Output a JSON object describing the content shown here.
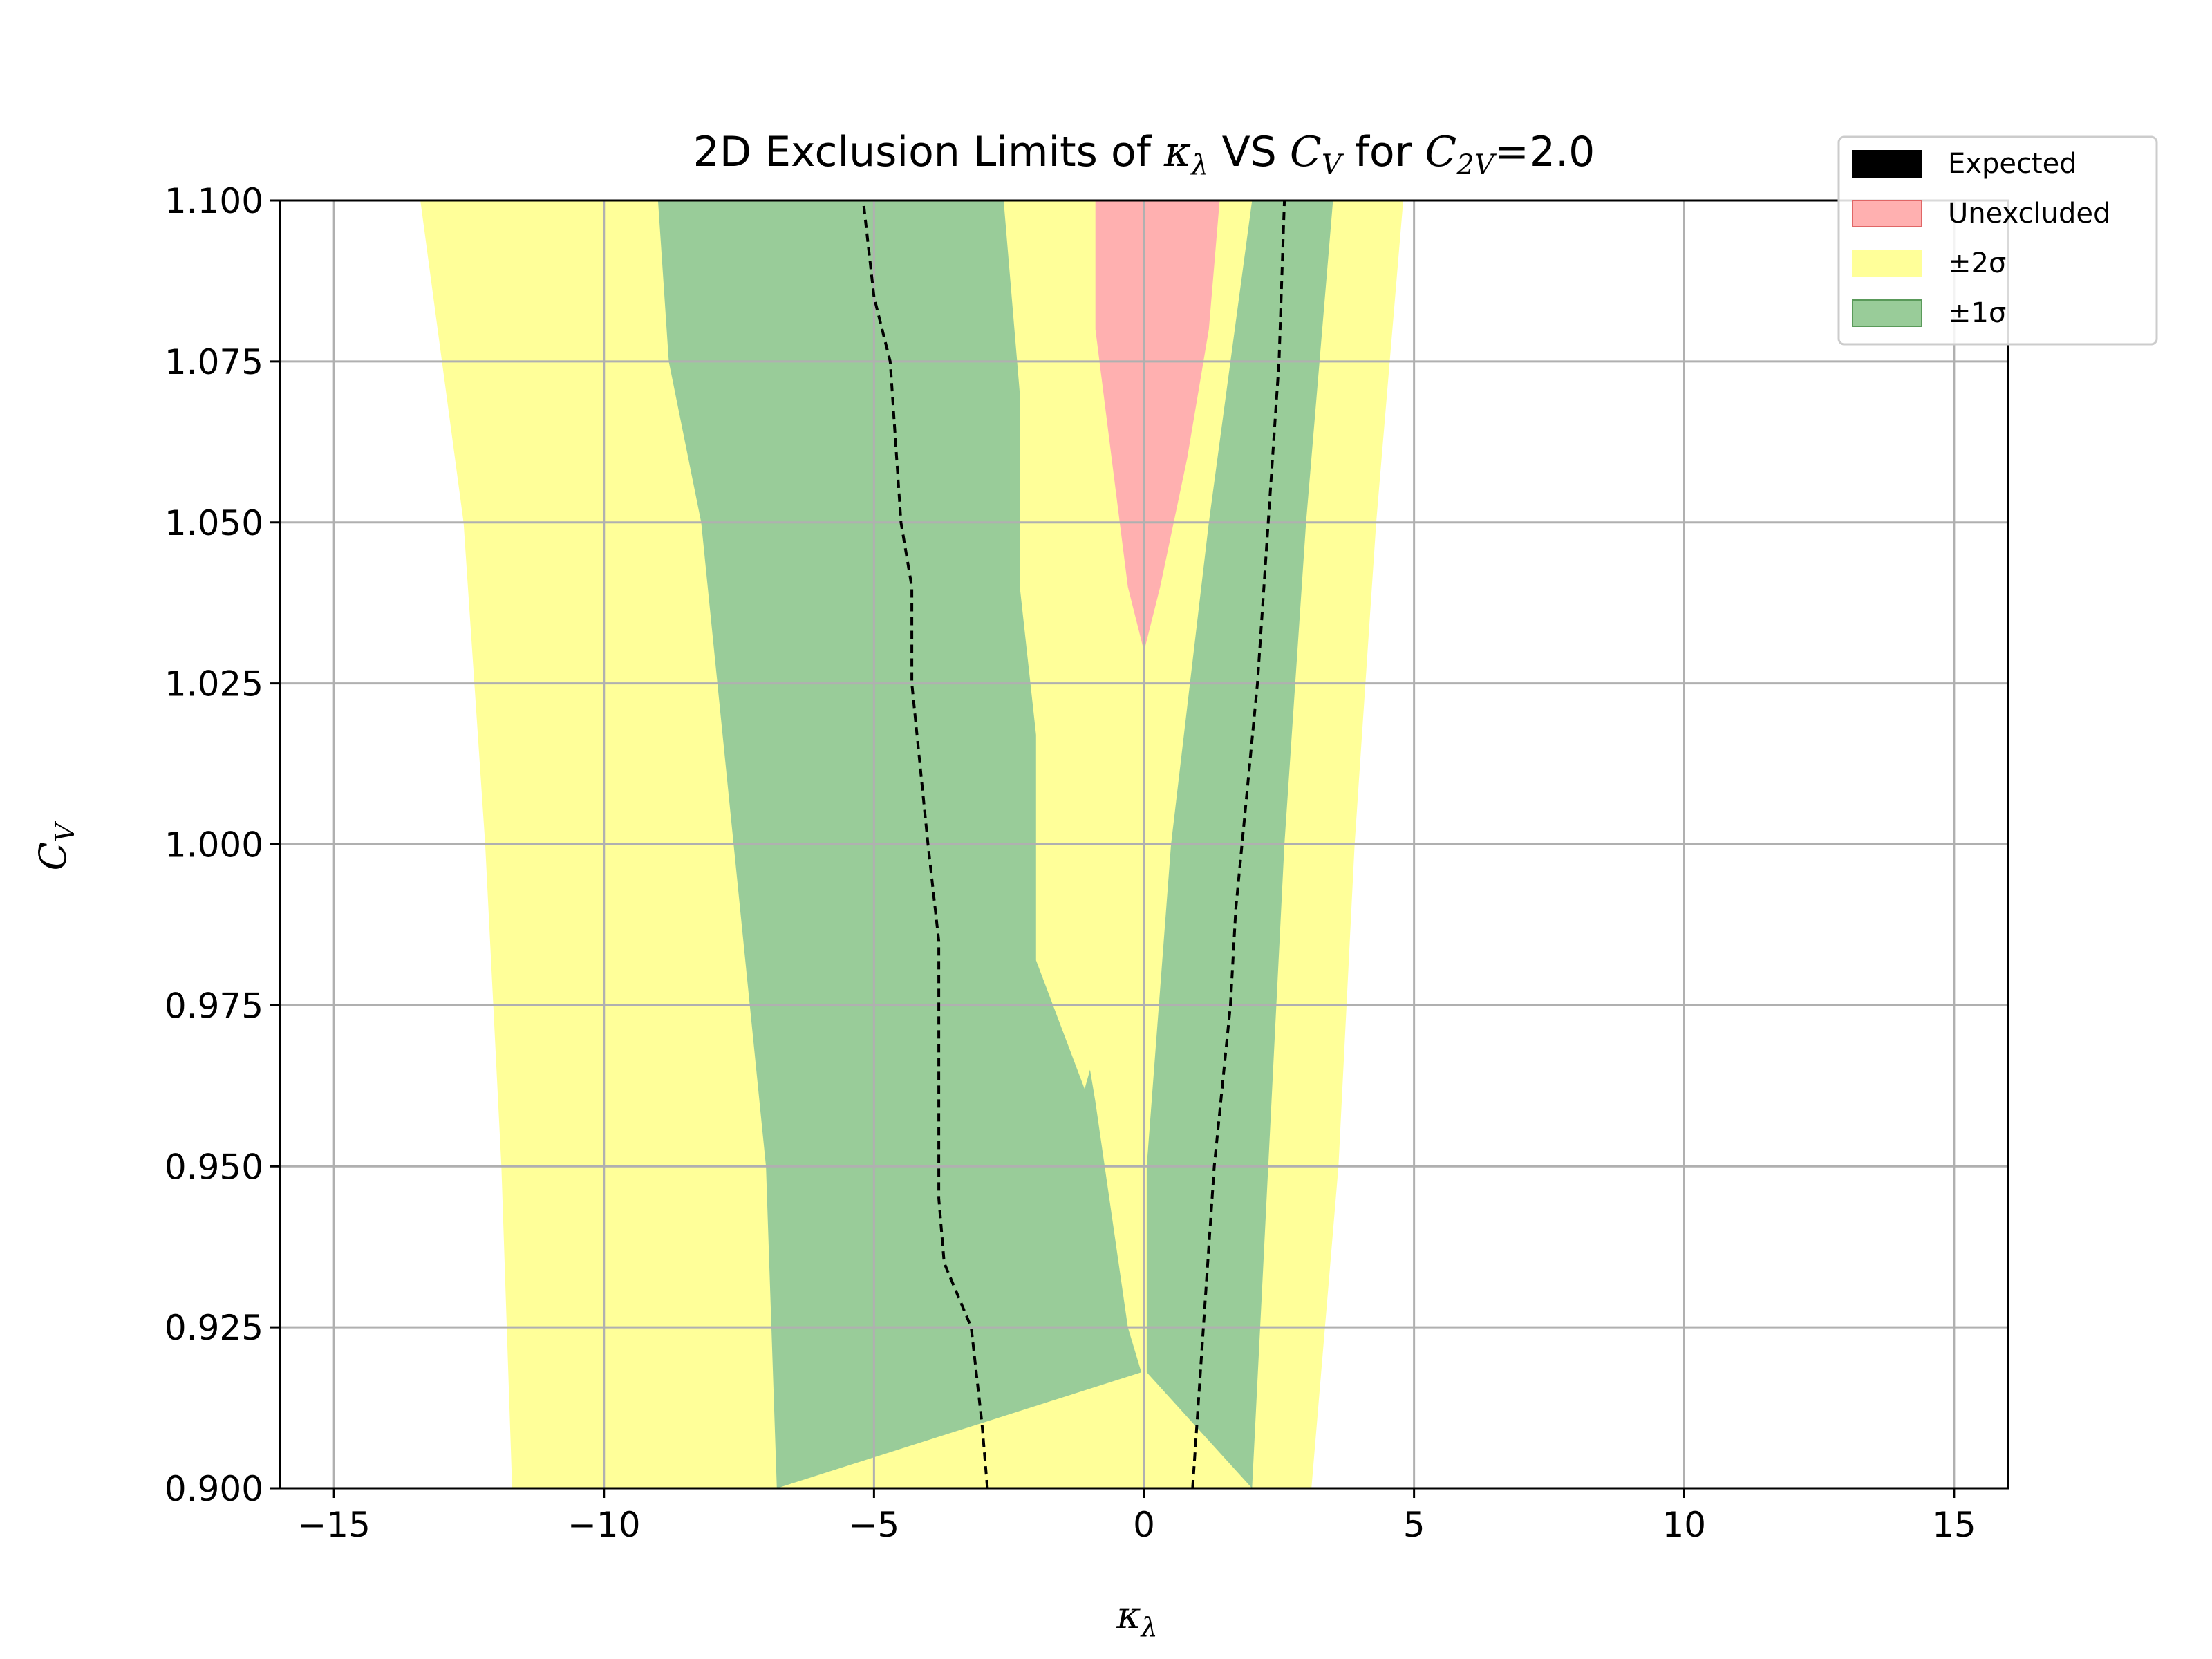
{
  "chart_data": {
    "type": "area",
    "title": {
      "prefix": "2D Exclusion Limits of ",
      "var1": "κ",
      "var1_sub": "λ",
      "middle": " VS ",
      "var2": "C",
      "var2_sub": "V",
      "middle2": " for ",
      "var3": "C",
      "var3_sub": "2V",
      "suffix": "=2.0"
    },
    "xlabel": {
      "symbol": "κ",
      "sub": "λ"
    },
    "ylabel": {
      "symbol": "C",
      "sub": "V"
    },
    "xlim": [
      -16,
      16
    ],
    "ylim": [
      0.9,
      1.1
    ],
    "xticks": [
      -15,
      -10,
      -5,
      0,
      5,
      10,
      15
    ],
    "xtick_labels": [
      "−15",
      "−10",
      "−5",
      "0",
      "5",
      "10",
      "15"
    ],
    "yticks": [
      0.9,
      0.925,
      0.95,
      0.975,
      1.0,
      1.025,
      1.05,
      1.075,
      1.1
    ],
    "ytick_labels": [
      "0.900",
      "0.925",
      "0.950",
      "0.975",
      "1.000",
      "1.025",
      "1.050",
      "1.075",
      "1.100"
    ],
    "grid": true,
    "legend_position": "top-right",
    "legend": [
      {
        "label": "Expected",
        "color": "#000000"
      },
      {
        "label": "Unexcluded",
        "color": "#ffb0b0"
      },
      {
        "label": "±2σ",
        "color": "#ffff99"
      },
      {
        "label": "±1σ",
        "color": "#99cc99"
      }
    ],
    "colors": {
      "expected": "#000000",
      "unexcluded": "#ffb0b0",
      "sigma2": "#ffff99",
      "sigma1": "#99cc99",
      "grid": "#b0b0b0"
    },
    "sigma2_band": {
      "left_boundary": [
        [
          -11.7,
          0.9
        ],
        [
          -11.9,
          0.95
        ],
        [
          -12.2,
          1.0
        ],
        [
          -12.6,
          1.05
        ],
        [
          -13.4,
          1.1
        ]
      ],
      "right_boundary": [
        [
          3.1,
          0.9
        ],
        [
          3.6,
          0.95
        ],
        [
          3.9,
          1.0
        ],
        [
          4.3,
          1.05
        ],
        [
          4.8,
          1.1
        ]
      ]
    },
    "sigma1_band_left": {
      "left_boundary": [
        [
          -6.8,
          0.9
        ],
        [
          -7.0,
          0.95
        ],
        [
          -7.6,
          1.0
        ],
        [
          -8.2,
          1.05
        ],
        [
          -8.8,
          1.075
        ],
        [
          -9.0,
          1.1
        ]
      ],
      "right_boundary": [
        [
          -0.05,
          0.918
        ],
        [
          -0.3,
          0.925
        ],
        [
          -0.9,
          0.96
        ],
        [
          -1.0,
          0.965
        ],
        [
          -1.1,
          0.962
        ],
        [
          -2.0,
          0.982
        ],
        [
          -2.0,
          1.0
        ],
        [
          -2.0,
          1.017
        ],
        [
          -2.3,
          1.04
        ],
        [
          -2.3,
          1.07
        ],
        [
          -2.6,
          1.1
        ]
      ]
    },
    "sigma1_band_right": {
      "left_boundary": [
        [
          0.05,
          0.918
        ],
        [
          0.05,
          0.95
        ],
        [
          0.5,
          1.0
        ],
        [
          1.2,
          1.05
        ],
        [
          2.0,
          1.1
        ]
      ],
      "right_boundary": [
        [
          2.0,
          0.9
        ],
        [
          2.3,
          0.95
        ],
        [
          2.6,
          1.0
        ],
        [
          3.0,
          1.05
        ],
        [
          3.5,
          1.1
        ]
      ]
    },
    "unexcluded_region": [
      [
        0.0,
        1.03
      ],
      [
        -0.3,
        1.04
      ],
      [
        -0.6,
        1.06
      ],
      [
        -0.9,
        1.08
      ],
      [
        -0.9,
        1.1
      ],
      [
        1.4,
        1.1
      ],
      [
        1.2,
        1.08
      ],
      [
        0.8,
        1.06
      ],
      [
        0.3,
        1.04
      ]
    ],
    "expected_left": [
      [
        -2.9,
        0.9
      ],
      [
        -3.0,
        0.91
      ],
      [
        -3.2,
        0.925
      ],
      [
        -3.7,
        0.935
      ],
      [
        -3.8,
        0.945
      ],
      [
        -3.8,
        0.985
      ],
      [
        -4.0,
        1.0
      ],
      [
        -4.3,
        1.025
      ],
      [
        -4.3,
        1.04
      ],
      [
        -4.5,
        1.05
      ],
      [
        -4.7,
        1.075
      ],
      [
        -5.0,
        1.085
      ],
      [
        -5.2,
        1.1
      ]
    ],
    "expected_right": [
      [
        0.9,
        0.9
      ],
      [
        1.1,
        0.925
      ],
      [
        1.3,
        0.95
      ],
      [
        1.6,
        0.975
      ],
      [
        1.7,
        0.99
      ],
      [
        2.1,
        1.025
      ],
      [
        2.3,
        1.05
      ],
      [
        2.5,
        1.075
      ],
      [
        2.6,
        1.1
      ]
    ]
  }
}
